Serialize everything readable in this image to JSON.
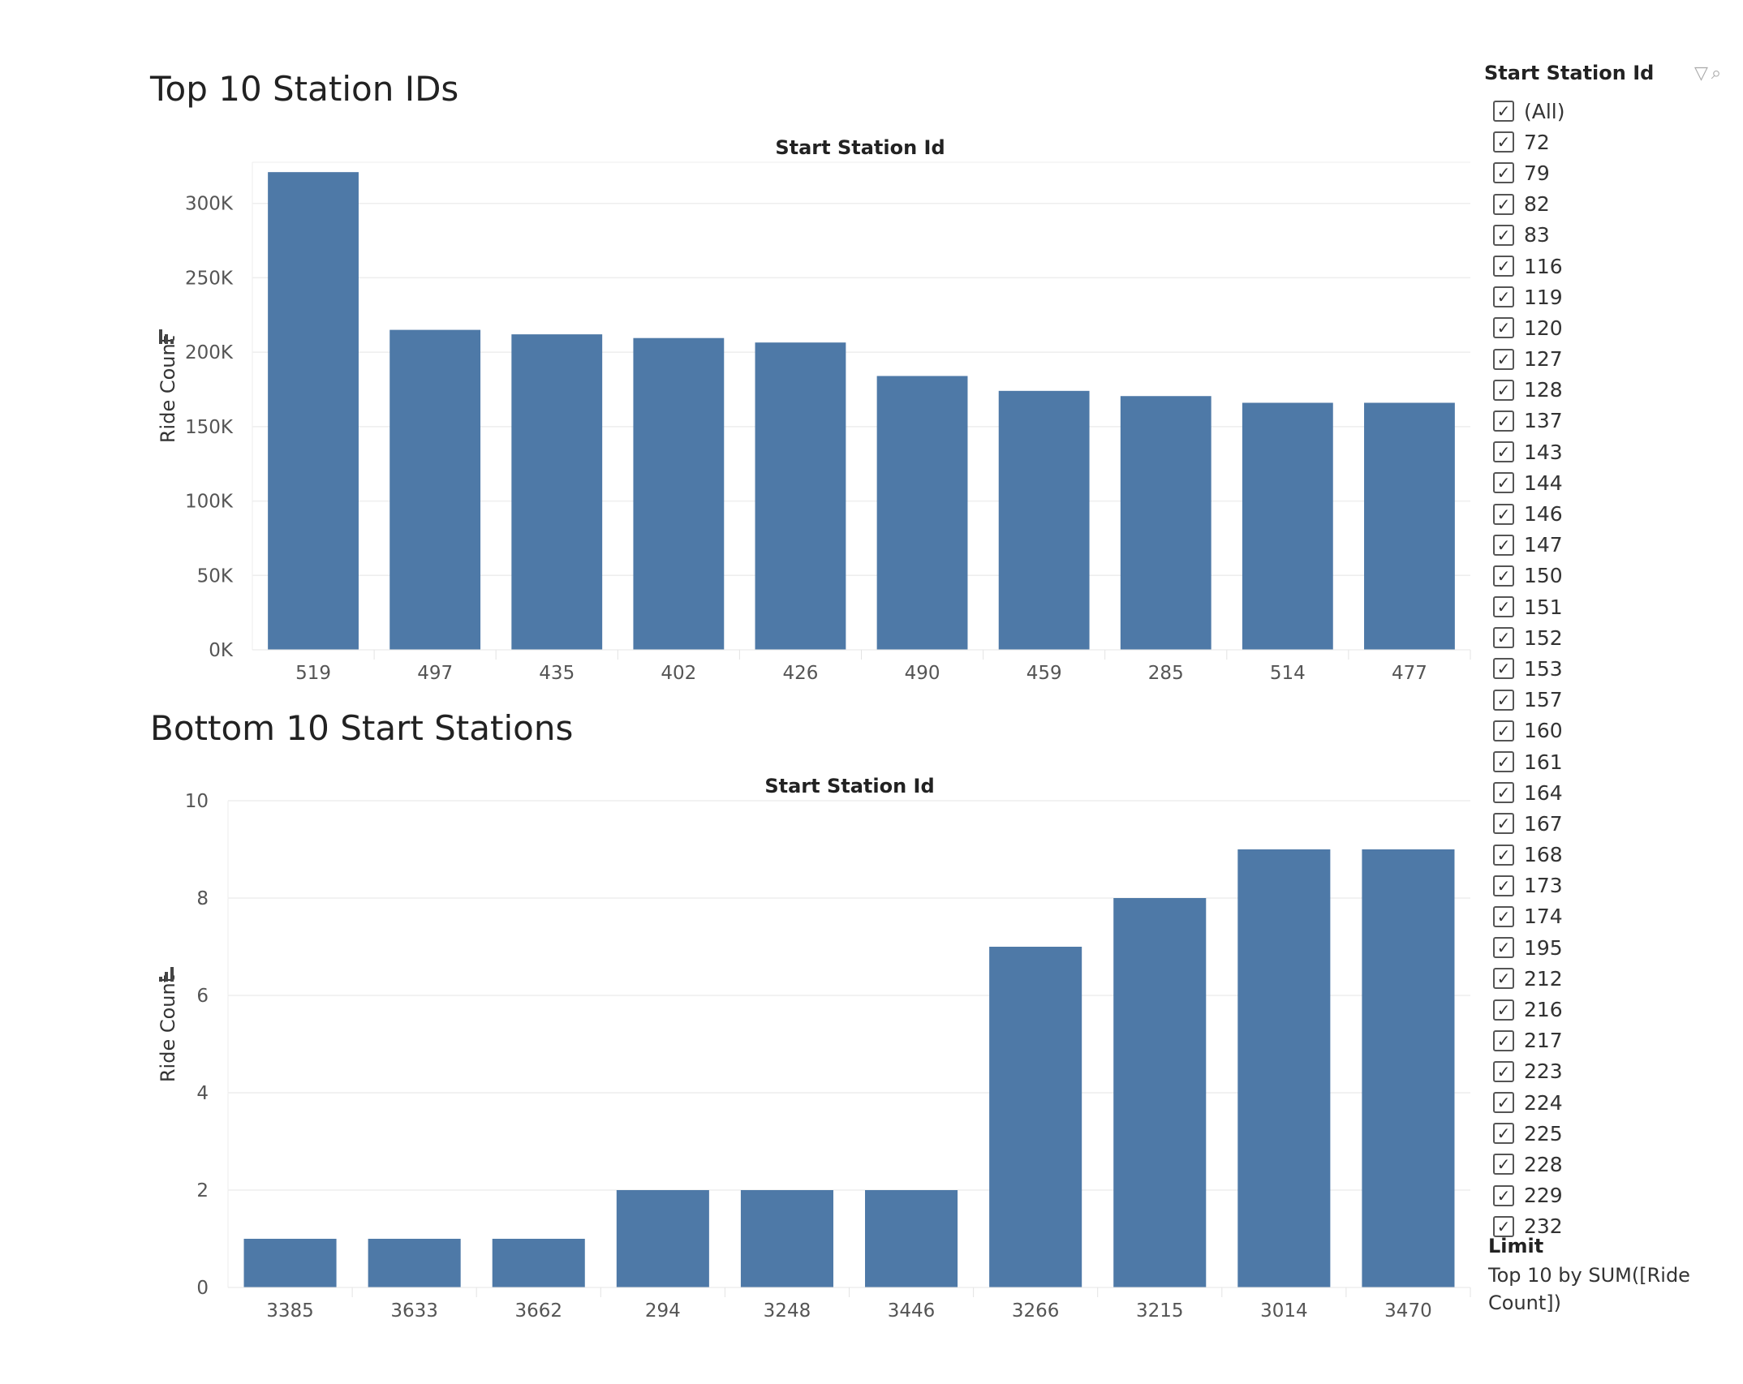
{
  "sheets": [
    {
      "title": "Top 10 Station IDs",
      "chart_data": {
        "type": "bar",
        "title": "Start Station Id",
        "xlabel": "",
        "ylabel": "Ride Count",
        "categories": [
          "519",
          "497",
          "435",
          "402",
          "426",
          "490",
          "459",
          "285",
          "514",
          "477"
        ],
        "values": [
          321000,
          215000,
          212000,
          209500,
          206500,
          184000,
          174000,
          170500,
          166000,
          166000
        ],
        "ylim": [
          0,
          320000
        ],
        "yticks": [
          0,
          50000,
          100000,
          150000,
          200000,
          250000,
          300000
        ],
        "ytick_labels": [
          "0K",
          "50K",
          "100K",
          "150K",
          "200K",
          "250K",
          "300K"
        ],
        "sort_icon": "sort-descending-icon",
        "bar_color": "#4e79a7",
        "grid": true
      }
    },
    {
      "title": "Bottom 10 Start Stations",
      "chart_data": {
        "type": "bar",
        "title": "Start Station Id",
        "xlabel": "",
        "ylabel": "Ride Count",
        "categories": [
          "3385",
          "3633",
          "3662",
          "294",
          "3248",
          "3446",
          "3266",
          "3215",
          "3014",
          "3470"
        ],
        "values": [
          1,
          1,
          1,
          2,
          2,
          2,
          7,
          8,
          9,
          9
        ],
        "ylim": [
          0,
          10
        ],
        "yticks": [
          0,
          2,
          4,
          6,
          8,
          10
        ],
        "ytick_labels": [
          "0",
          "2",
          "4",
          "6",
          "8",
          "10"
        ],
        "sort_icon": "sort-ascending-icon",
        "bar_color": "#4e79a7",
        "grid": true
      }
    }
  ],
  "filter": {
    "title": "Start Station Id",
    "tools": [
      "filter-icon",
      "search-icon"
    ],
    "items": [
      "(All)",
      "72",
      "79",
      "82",
      "83",
      "116",
      "119",
      "120",
      "127",
      "128",
      "137",
      "143",
      "144",
      "146",
      "147",
      "150",
      "151",
      "152",
      "153",
      "157",
      "160",
      "161",
      "164",
      "167",
      "168",
      "173",
      "174",
      "195",
      "212",
      "216",
      "217",
      "223",
      "224",
      "225",
      "228",
      "229",
      "232"
    ],
    "checked": true,
    "limit_label": "Limit",
    "limit_text": "Top 10 by SUM([Ride Count])"
  }
}
